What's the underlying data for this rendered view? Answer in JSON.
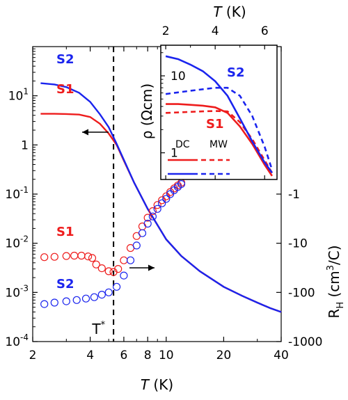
{
  "chart_data": {
    "type": "scatter",
    "main": {
      "xlabel": "T (K)",
      "x_scale": "log",
      "xlim": [
        2,
        40
      ],
      "x_ticks": [
        "2",
        "4",
        "6",
        "8",
        "10",
        "20",
        "40"
      ],
      "y_scale": "log",
      "ylim": [
        0.0001,
        100
      ],
      "y_ticks": [
        "10^-4",
        "10^-3",
        "10^-2",
        "10^-1",
        "1",
        "10^1"
      ],
      "ylabel_right": "R_H (cm^3/C)",
      "y_right_ticks": [
        "-1",
        "-10",
        "-100",
        "-1000"
      ],
      "tstar_label": "T*",
      "tstar_x": 5.3,
      "rho_series": [
        {
          "name": "S1",
          "color": "#ee1c1c",
          "points": [
            [
              2.2,
              4.3
            ],
            [
              2.6,
              4.3
            ],
            [
              3.0,
              4.25
            ],
            [
              3.5,
              4.15
            ],
            [
              4.0,
              3.7
            ],
            [
              4.5,
              2.7
            ],
            [
              5.0,
              1.7
            ],
            [
              5.5,
              1.0
            ],
            [
              6.0,
              0.48
            ],
            [
              6.8,
              0.17
            ],
            [
              8.0,
              0.05
            ],
            [
              10.0,
              0.012
            ],
            [
              12.0,
              0.0055
            ],
            [
              15.0,
              0.0027
            ],
            [
              20.0,
              0.0013
            ],
            [
              25.0,
              0.00085
            ],
            [
              30.0,
              0.00062
            ],
            [
              35.0,
              0.00048
            ],
            [
              40.0,
              0.0004
            ]
          ]
        },
        {
          "name": "S2",
          "color": "#1a24ee",
          "points": [
            [
              2.2,
              18.0
            ],
            [
              2.6,
              17.0
            ],
            [
              3.0,
              15.0
            ],
            [
              3.5,
              11.5
            ],
            [
              4.0,
              7.5
            ],
            [
              4.5,
              4.2
            ],
            [
              5.0,
              2.3
            ],
            [
              5.5,
              1.05
            ],
            [
              6.0,
              0.5
            ],
            [
              6.8,
              0.17
            ],
            [
              8.0,
              0.05
            ],
            [
              10.0,
              0.012
            ],
            [
              12.0,
              0.0055
            ],
            [
              15.0,
              0.0027
            ],
            [
              20.0,
              0.0013
            ],
            [
              25.0,
              0.00085
            ],
            [
              30.0,
              0.00062
            ],
            [
              35.0,
              0.00048
            ],
            [
              40.0,
              0.0004
            ]
          ]
        }
      ],
      "rh_series": [
        {
          "name": "S1",
          "color": "#ee1c1c",
          "points": [
            [
              2.3,
              0.0052
            ],
            [
              2.6,
              0.0053
            ],
            [
              3.0,
              0.0055
            ],
            [
              3.3,
              0.0056
            ],
            [
              3.6,
              0.0056
            ],
            [
              3.9,
              0.0054
            ],
            [
              4.1,
              0.005
            ],
            [
              4.3,
              0.0037
            ],
            [
              4.6,
              0.0031
            ],
            [
              5.0,
              0.0027
            ],
            [
              5.3,
              0.0026
            ],
            [
              5.6,
              0.003
            ],
            [
              6.0,
              0.0045
            ],
            [
              6.5,
              0.008
            ],
            [
              7.0,
              0.014
            ],
            [
              7.5,
              0.022
            ],
            [
              8.0,
              0.033
            ],
            [
              8.5,
              0.045
            ],
            [
              9.0,
              0.06
            ],
            [
              9.5,
              0.075
            ],
            [
              10.0,
              0.09
            ],
            [
              10.5,
              0.11
            ],
            [
              11.0,
              0.13
            ],
            [
              11.5,
              0.15
            ],
            [
              12.0,
              0.17
            ]
          ]
        },
        {
          "name": "S2",
          "color": "#1a24ee",
          "points": [
            [
              2.3,
              0.00058
            ],
            [
              2.6,
              0.00062
            ],
            [
              3.0,
              0.00066
            ],
            [
              3.4,
              0.0007
            ],
            [
              3.8,
              0.00075
            ],
            [
              4.2,
              0.0008
            ],
            [
              4.6,
              0.0009
            ],
            [
              5.0,
              0.001
            ],
            [
              5.5,
              0.0013
            ],
            [
              6.0,
              0.0022
            ],
            [
              6.5,
              0.0045
            ],
            [
              7.0,
              0.009
            ],
            [
              7.5,
              0.016
            ],
            [
              8.0,
              0.025
            ],
            [
              8.5,
              0.035
            ],
            [
              9.0,
              0.05
            ],
            [
              9.5,
              0.065
            ],
            [
              10.0,
              0.08
            ],
            [
              10.5,
              0.1
            ],
            [
              11.0,
              0.12
            ],
            [
              11.5,
              0.14
            ],
            [
              12.0,
              0.16
            ]
          ]
        }
      ],
      "labels": {
        "rho_s1": "S1",
        "rho_s2": "S2",
        "rh_s1": "S1",
        "rh_s2": "S2"
      }
    },
    "inset": {
      "xlabel": "T (K)",
      "x_ticks": [
        "2",
        "4",
        "6"
      ],
      "xlim": [
        1.8,
        6.5
      ],
      "ylabel": "ρ (Ωcm)",
      "y_scale": "log",
      "ylim": [
        0.45,
        25
      ],
      "y_ticks": [
        "1",
        "10"
      ],
      "legend": {
        "dc": "DC",
        "mw": "MW"
      },
      "labels": {
        "s1": "S1",
        "s2": "S2"
      },
      "series": [
        {
          "name": "S1 DC",
          "color": "#ee1c1c",
          "style": "solid",
          "points": [
            [
              2.0,
              4.3
            ],
            [
              2.5,
              4.3
            ],
            [
              3.0,
              4.2
            ],
            [
              3.5,
              4.1
            ],
            [
              4.0,
              3.9
            ],
            [
              4.5,
              3.3
            ],
            [
              5.0,
              2.2
            ],
            [
              5.5,
              1.3
            ],
            [
              6.0,
              0.7
            ],
            [
              6.3,
              0.5
            ]
          ]
        },
        {
          "name": "S1 MW",
          "color": "#ee1c1c",
          "style": "dashed",
          "points": [
            [
              2.0,
              3.3
            ],
            [
              2.5,
              3.35
            ],
            [
              3.0,
              3.4
            ],
            [
              3.5,
              3.45
            ],
            [
              4.0,
              3.5
            ],
            [
              4.5,
              3.45
            ],
            [
              5.0,
              2.5
            ],
            [
              5.5,
              1.5
            ],
            [
              6.0,
              0.8
            ],
            [
              6.3,
              0.55
            ]
          ]
        },
        {
          "name": "S2 DC",
          "color": "#1a24ee",
          "style": "solid",
          "points": [
            [
              2.0,
              18.0
            ],
            [
              2.5,
              16.5
            ],
            [
              3.0,
              14.0
            ],
            [
              3.5,
              11.5
            ],
            [
              4.0,
              8.5
            ],
            [
              4.5,
              5.5
            ],
            [
              5.0,
              2.8
            ],
            [
              5.5,
              1.4
            ],
            [
              6.0,
              0.75
            ],
            [
              6.3,
              0.55
            ]
          ]
        },
        {
          "name": "S2 MW",
          "color": "#1a24ee",
          "style": "dashed",
          "points": [
            [
              2.0,
              5.8
            ],
            [
              2.5,
              6.1
            ],
            [
              3.0,
              6.4
            ],
            [
              3.5,
              6.7
            ],
            [
              4.0,
              7.0
            ],
            [
              4.5,
              7.0
            ],
            [
              5.0,
              5.5
            ],
            [
              5.5,
              3.0
            ],
            [
              6.0,
              1.2
            ],
            [
              6.3,
              0.6
            ]
          ]
        }
      ]
    },
    "colors": {
      "s1": "#ee1c1c",
      "s2": "#1a24ee"
    }
  }
}
